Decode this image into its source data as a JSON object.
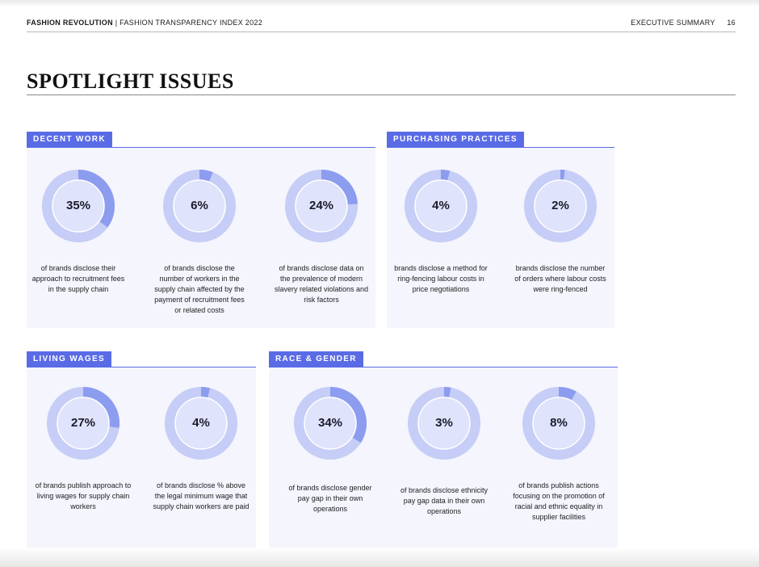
{
  "header": {
    "brand": "FASHION REVOLUTION",
    "separator": "|",
    "publication": "FASHION TRANSPARENCY INDEX 2022",
    "section": "EXECUTIVE SUMMARY",
    "page_number": "16"
  },
  "title": "SPOTLIGHT ISSUES",
  "colors": {
    "accent": "#5a6be6",
    "ring_base": "#c6cdf6",
    "ring_fill": "#8c9cef",
    "ring_inner": "#dfe3fb",
    "panel_bg": "#f4f5fd"
  },
  "sections": {
    "decent_work": {
      "label": "DECENT WORK",
      "stats": [
        {
          "value": 35,
          "label": "35%",
          "description": "of brands disclose their approach to recruitment fees in the supply chain"
        },
        {
          "value": 6,
          "label": "6%",
          "description": "of brands disclose the number of workers in the supply chain affected by the payment of recruitment fees or related costs"
        },
        {
          "value": 24,
          "label": "24%",
          "description": "of brands disclose data on the prevalence of modern slavery related violations and risk factors"
        }
      ]
    },
    "purchasing_practices": {
      "label": "PURCHASING PRACTICES",
      "stats": [
        {
          "value": 4,
          "label": "4%",
          "description": "brands disclose a method for ring-fencing labour costs in price negotiations"
        },
        {
          "value": 2,
          "label": "2%",
          "description": "brands disclose the number of orders where labour costs were ring-fenced"
        }
      ]
    },
    "living_wages": {
      "label": "LIVING WAGES",
      "stats": [
        {
          "value": 27,
          "label": "27%",
          "description": "of brands publish approach to living wages for supply chain workers"
        },
        {
          "value": 4,
          "label": "4%",
          "description": "of brands disclose % above the legal minimum wage that supply chain workers are paid"
        }
      ]
    },
    "race_gender": {
      "label": "RACE & GENDER",
      "stats": [
        {
          "value": 34,
          "label": "34%",
          "description": "of brands disclose gender pay gap in their own operations"
        },
        {
          "value": 3,
          "label": "3%",
          "description": "of brands disclose ethnicity pay gap data in their own operations"
        },
        {
          "value": 8,
          "label": "8%",
          "description": "of brands publish actions focusing on the promotion of racial and ethnic equality in supplier facilities"
        }
      ]
    }
  }
}
